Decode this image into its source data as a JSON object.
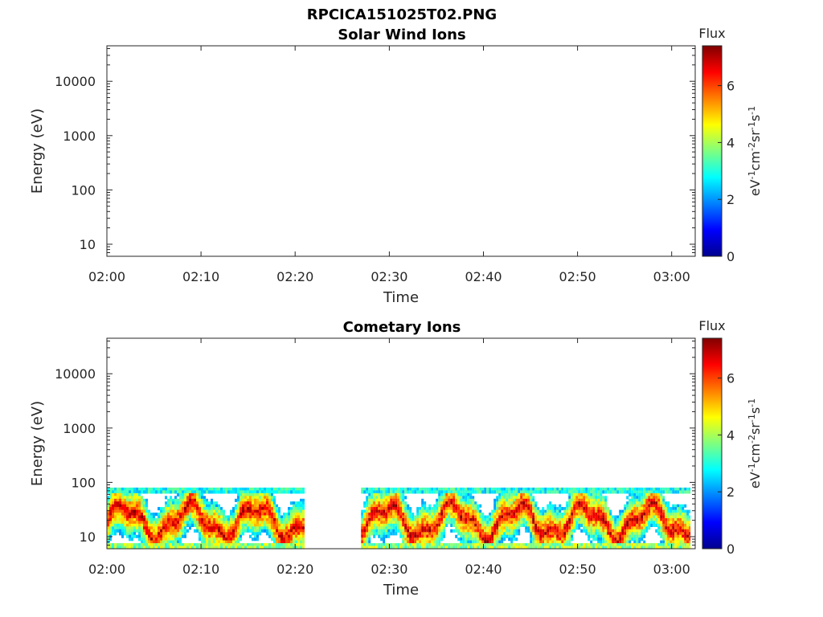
{
  "figure": {
    "title": "RPCICA151025T02.PNG"
  },
  "colorbar": {
    "label": "Flux",
    "unit_label": "eV-1cm-2sr-1s-1",
    "ticks": [
      0,
      2,
      4,
      6
    ],
    "range": [
      0,
      7.4
    ],
    "colormap": "jet"
  },
  "chart_data": [
    {
      "type": "heatmap",
      "title": "Solar Wind Ions",
      "xlabel": "Time",
      "ylabel": "Energy (eV)",
      "x_ticks": [
        "02:00",
        "02:10",
        "02:20",
        "02:30",
        "02:40",
        "02:50",
        "03:00"
      ],
      "x_range_minutes": [
        0,
        62.5
      ],
      "y_scale": "log",
      "y_ticks": [
        10,
        100,
        1000,
        10000
      ],
      "y_range": [
        6,
        45000
      ],
      "data_intervals": [],
      "energy_band": null
    },
    {
      "type": "heatmap",
      "title": "Cometary Ions",
      "xlabel": "Time",
      "ylabel": "Energy (eV)",
      "x_ticks": [
        "02:00",
        "02:10",
        "02:20",
        "02:30",
        "02:40",
        "02:50",
        "03:00"
      ],
      "x_range_minutes": [
        0,
        62.5
      ],
      "y_scale": "log",
      "y_ticks": [
        10,
        100,
        1000,
        10000
      ],
      "y_range": [
        6,
        45000
      ],
      "data_intervals": [
        {
          "start": "02:00",
          "end": "02:21"
        },
        {
          "start": "02:27",
          "end": "03:02"
        }
      ],
      "energy_band": [
        6,
        80
      ],
      "peak_flux": 6.8
    }
  ]
}
